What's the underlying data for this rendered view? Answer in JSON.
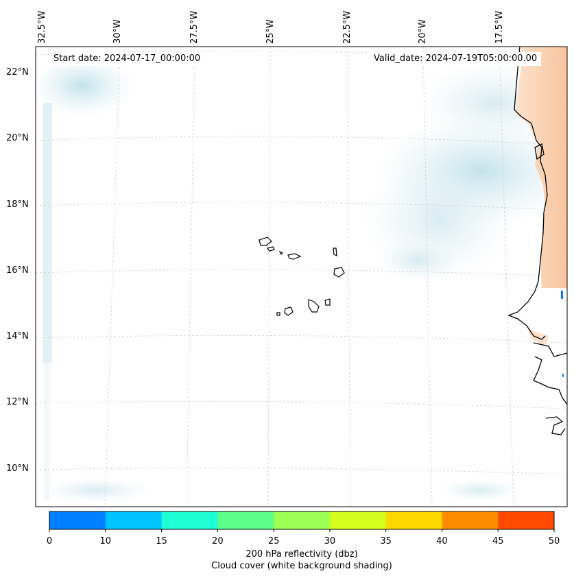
{
  "header": {
    "start_date": "Start date: 2024-07-17_00:00:00",
    "valid_date": "Valid_date: 2024-07-19T05:00:00.00"
  },
  "axes": {
    "lon_labels": [
      "32.5°W",
      "30°W",
      "27.5°W",
      "25°W",
      "22.5°W",
      "20°W",
      "17.5°W"
    ],
    "lat_labels": [
      "22°N",
      "20°N",
      "18°N",
      "16°N",
      "14°N",
      "12°N",
      "10°N"
    ]
  },
  "colorbar": {
    "ticks": [
      "0",
      "10",
      "15",
      "20",
      "25",
      "30",
      "35",
      "40",
      "45",
      "50"
    ],
    "colors": [
      "#0080ff",
      "#00c4ff",
      "#1effd6",
      "#5cff8a",
      "#9dff54",
      "#d4ff1e",
      "#ffd800",
      "#ff8c00",
      "#ff4a00"
    ],
    "label": "200 hPa reflectivity (dbz)",
    "sublabel": "Cloud cover (white background shading)"
  }
}
